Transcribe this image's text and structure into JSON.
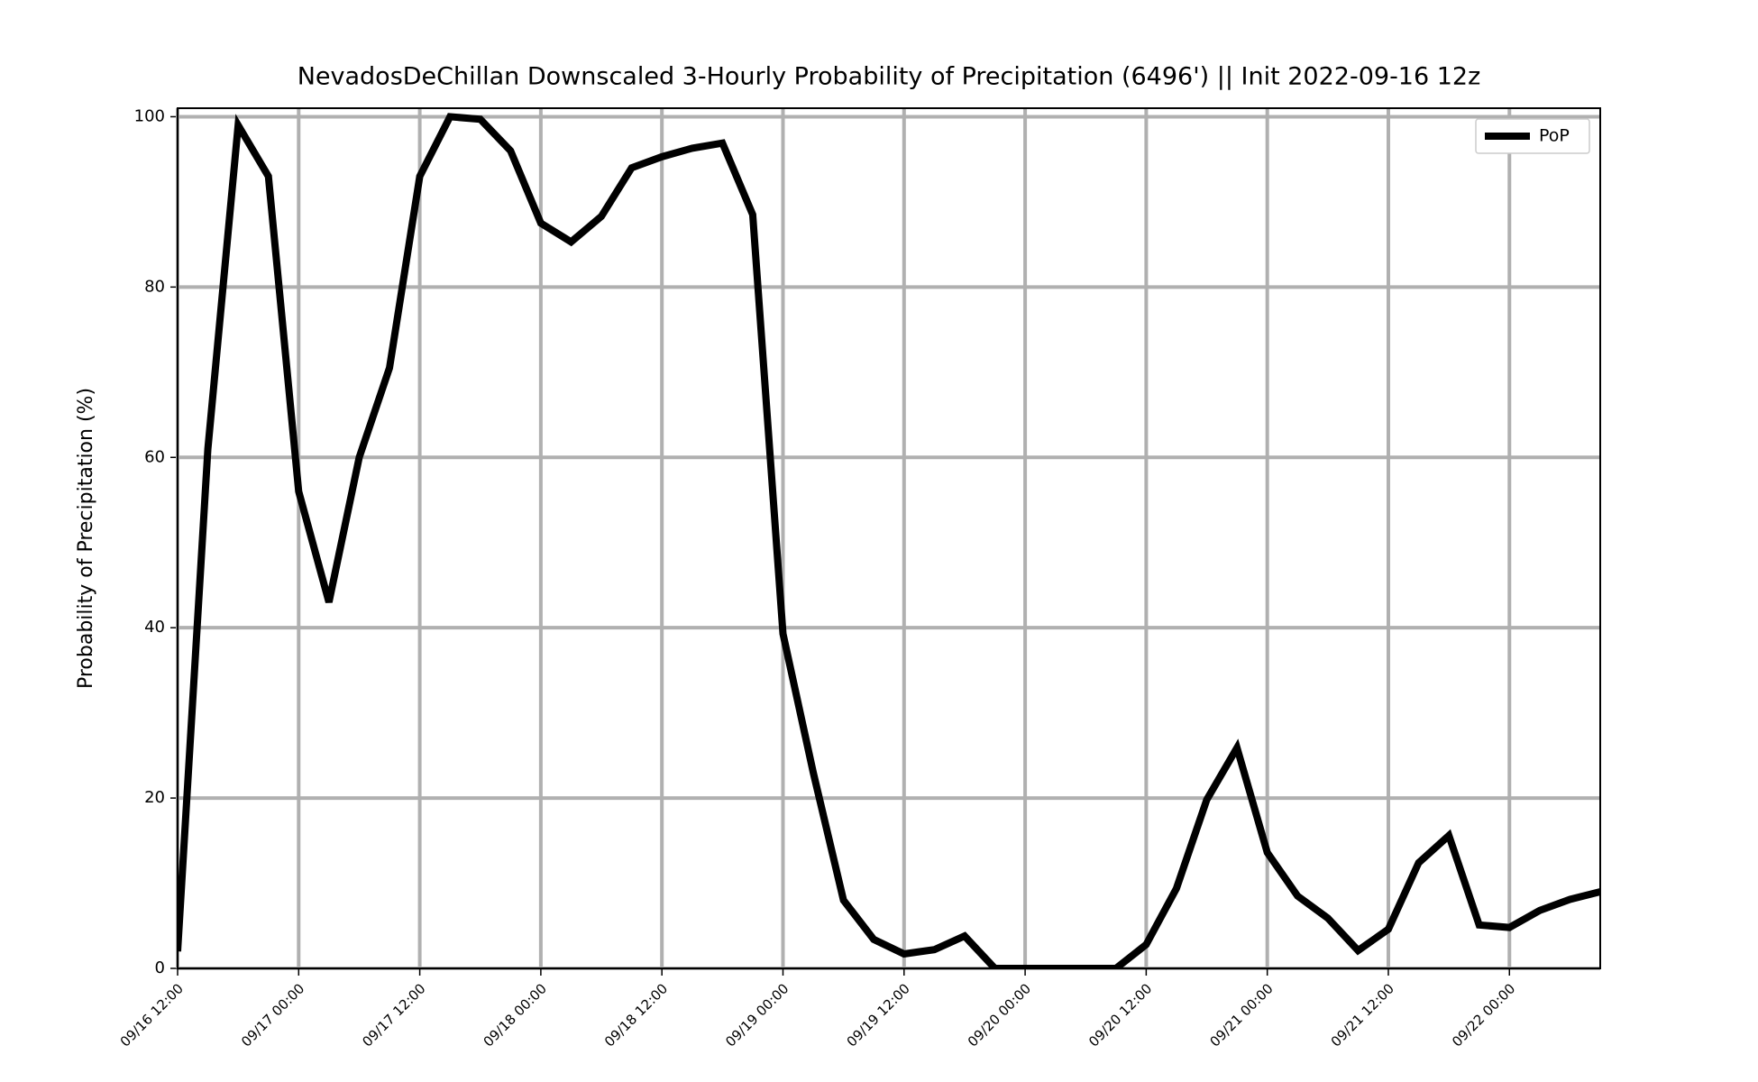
{
  "chart_data": {
    "type": "line",
    "title": "NevadosDeChillan Downscaled 3-Hourly Probability of Precipitation (6496') || Init 2022-09-16 12z",
    "ylabel": "Probability of Precipitation (%)",
    "x": [
      "09/16 12:00",
      "09/16 15:00",
      "09/16 18:00",
      "09/16 21:00",
      "09/17 00:00",
      "09/17 03:00",
      "09/17 06:00",
      "09/17 09:00",
      "09/17 12:00",
      "09/17 15:00",
      "09/17 18:00",
      "09/17 21:00",
      "09/18 00:00",
      "09/18 03:00",
      "09/18 06:00",
      "09/18 09:00",
      "09/18 12:00",
      "09/18 15:00",
      "09/18 18:00",
      "09/18 21:00",
      "09/19 00:00",
      "09/19 03:00",
      "09/19 06:00",
      "09/19 09:00",
      "09/19 12:00",
      "09/19 15:00",
      "09/19 18:00",
      "09/19 21:00",
      "09/20 00:00",
      "09/20 03:00",
      "09/20 06:00",
      "09/20 09:00",
      "09/20 12:00",
      "09/20 15:00",
      "09/20 18:00",
      "09/20 21:00",
      "09/21 00:00",
      "09/21 03:00",
      "09/21 06:00",
      "09/21 09:00",
      "09/21 12:00",
      "09/21 15:00",
      "09/21 18:00",
      "09/21 21:00",
      "09/22 00:00",
      "09/22 03:00",
      "09/22 06:00",
      "09/22 09:00"
    ],
    "series": [
      {
        "name": "PoP",
        "color": "#000000",
        "values": [
          2,
          61,
          99,
          93,
          56,
          43,
          60,
          70.5,
          93,
          100,
          99.7,
          96,
          87.5,
          85.3,
          88.3,
          94,
          95.3,
          96.3,
          96.9,
          88.5,
          39.3,
          23,
          8,
          3.4,
          1.7,
          2.2,
          3.8,
          0,
          0,
          0,
          0,
          0,
          2.8,
          9.4,
          19.8,
          25.9,
          13.6,
          8.5,
          5.9,
          2.1,
          4.6,
          12.4,
          15.6,
          5.1,
          4.8,
          6.8,
          8.1,
          9.0
        ]
      }
    ],
    "xlim": [
      "09/16 12:00",
      "09/22 09:00"
    ],
    "xticks": [
      "09/16 12:00",
      "09/17 00:00",
      "09/17 12:00",
      "09/18 00:00",
      "09/18 12:00",
      "09/19 00:00",
      "09/19 12:00",
      "09/20 00:00",
      "09/20 12:00",
      "09/21 00:00",
      "09/21 12:00",
      "09/22 00:00"
    ],
    "ylim": [
      0,
      101
    ],
    "yticks": [
      0,
      20,
      40,
      60,
      80,
      100
    ],
    "grid": true,
    "legend": "upper right"
  }
}
